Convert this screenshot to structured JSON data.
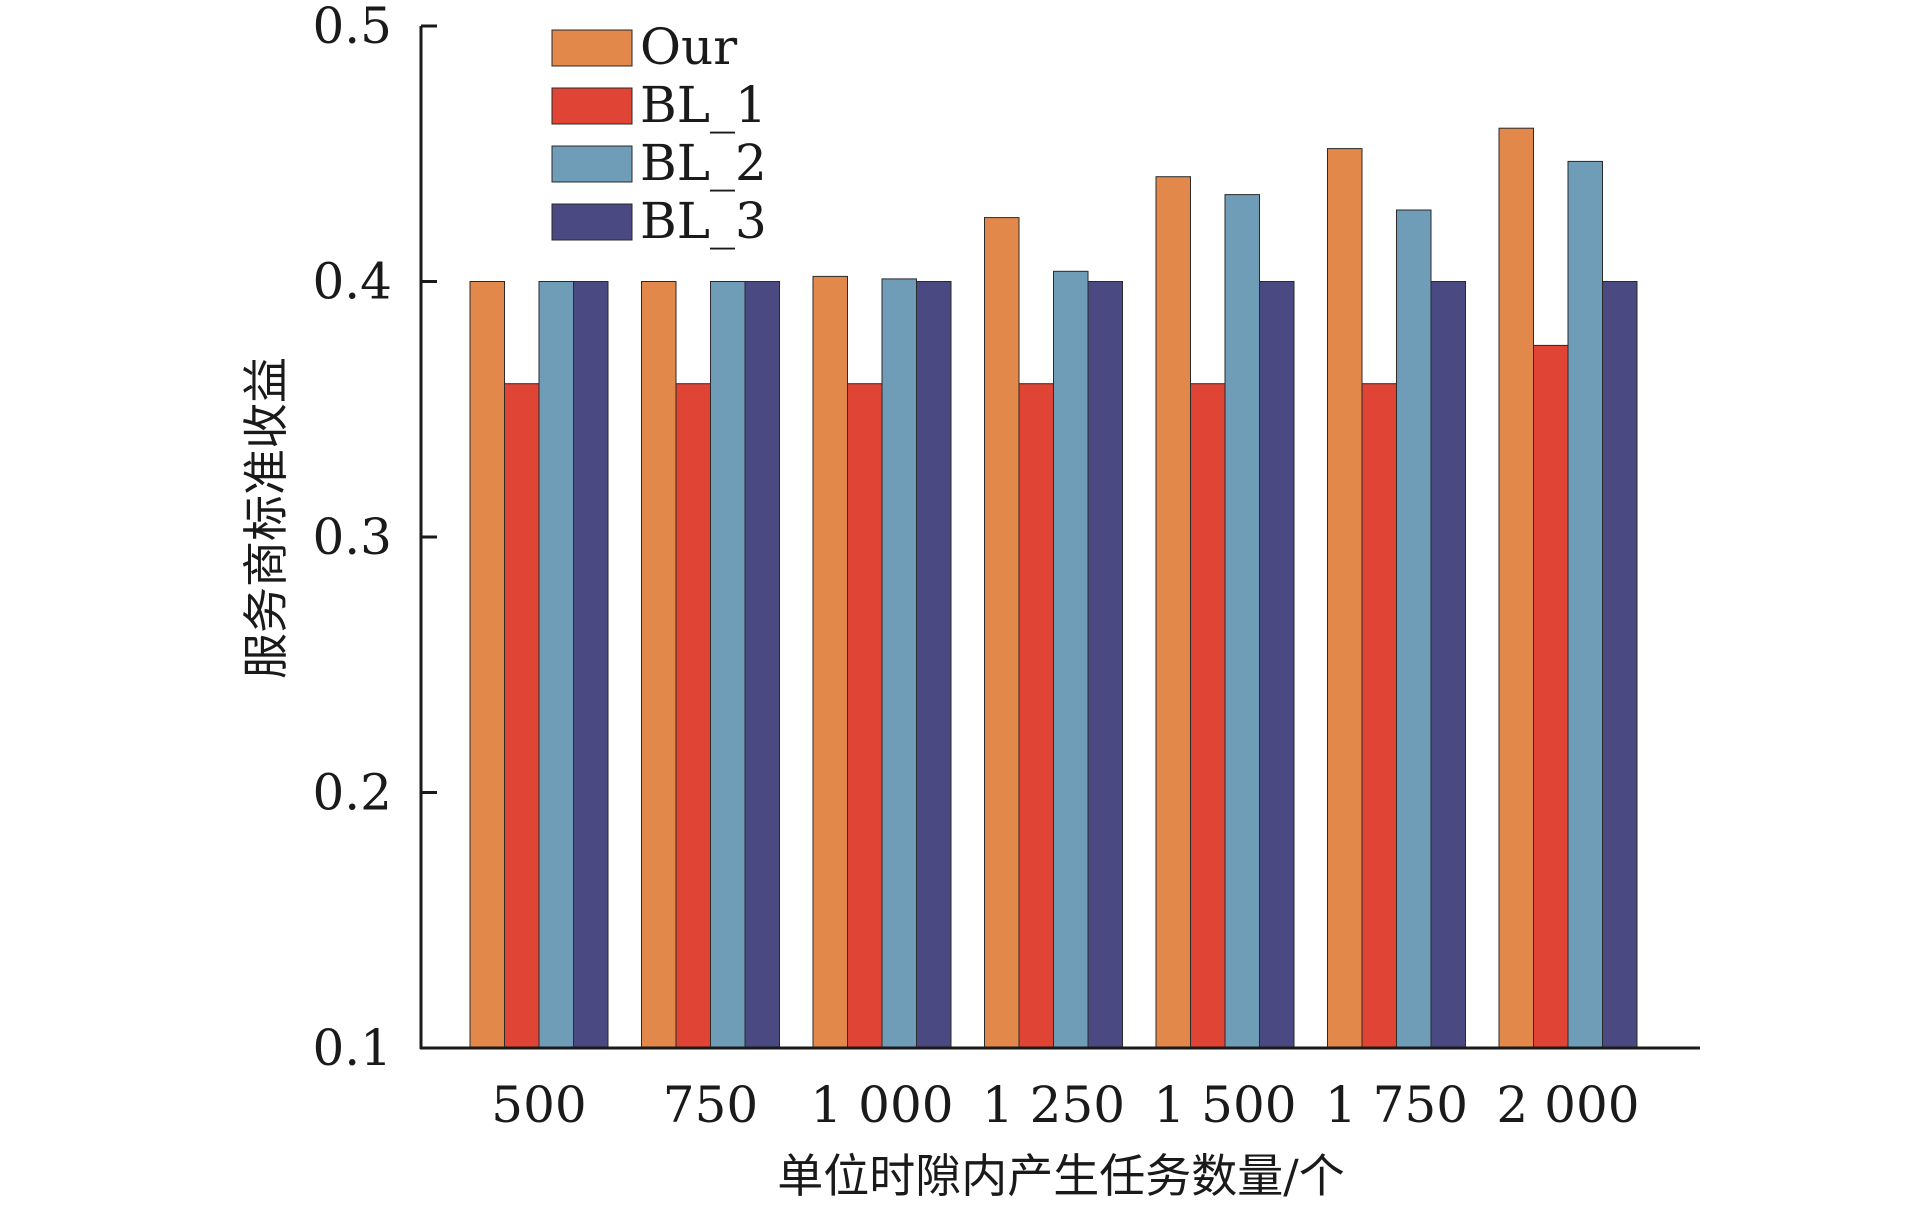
{
  "chart_data": {
    "type": "bar",
    "title": "",
    "xlabel": "单位时隙内产生任务数量/个",
    "ylabel": "服务商标准收益",
    "ylim": [
      0.1,
      0.5
    ],
    "yticks": [
      "0.1",
      "0.2",
      "0.3",
      "0.4",
      "0.5"
    ],
    "categories": [
      "500",
      "750",
      "1 000",
      "1 250",
      "1 500",
      "1 750",
      "2 000"
    ],
    "legend_position": "top-left",
    "grid": false,
    "series": [
      {
        "name": "Our",
        "color": "#E2884A",
        "values": [
          0.4,
          0.4,
          0.402,
          0.425,
          0.441,
          0.452,
          0.46
        ]
      },
      {
        "name": "BL_1",
        "color": "#E04434",
        "values": [
          0.36,
          0.36,
          0.36,
          0.36,
          0.36,
          0.36,
          0.375
        ]
      },
      {
        "name": "BL_2",
        "color": "#6F9DB8",
        "values": [
          0.4,
          0.4,
          0.401,
          0.404,
          0.434,
          0.428,
          0.447
        ]
      },
      {
        "name": "BL_3",
        "color": "#4A4981",
        "values": [
          0.4,
          0.4,
          0.4,
          0.4,
          0.4,
          0.4,
          0.4
        ]
      }
    ]
  }
}
